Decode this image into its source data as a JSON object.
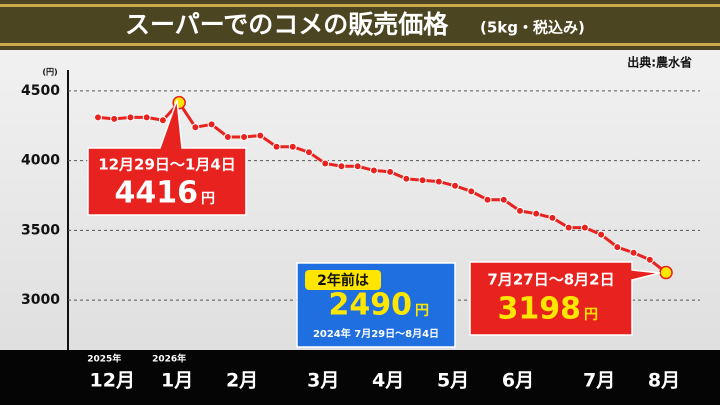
{
  "chart_data": {
    "type": "line",
    "title": "スーパーでのコメの販売価格",
    "subtitle": "(5kg・税込み)",
    "source": "出典:農水省",
    "y_unit": "(円)",
    "year_labels": [
      "2025年",
      "2026年"
    ],
    "categories": [
      null,
      "12月",
      null,
      null,
      null,
      "1月",
      null,
      null,
      null,
      "2月",
      null,
      null,
      null,
      null,
      "3月",
      null,
      null,
      null,
      "4月",
      null,
      null,
      null,
      "5月",
      null,
      null,
      null,
      "6月",
      null,
      null,
      null,
      null,
      "7月",
      null,
      null,
      null,
      "8月"
    ],
    "series": [
      {
        "name": "販売価格",
        "color": "#e8231f",
        "values": [
          4310,
          4300,
          4310,
          4310,
          4290,
          4416,
          4240,
          4260,
          4170,
          4170,
          4180,
          4100,
          4100,
          4060,
          3980,
          3960,
          3960,
          3930,
          3920,
          3870,
          3860,
          3850,
          3820,
          3780,
          3720,
          3720,
          3640,
          3620,
          3590,
          3520,
          3520,
          3470,
          3380,
          3340,
          3290,
          3198
        ]
      }
    ],
    "ylim": [
      2650,
      4650
    ],
    "yticks": [
      3000,
      3500,
      4000,
      4500
    ],
    "grid": true,
    "highlight_color": "#ffe600",
    "annotations": [
      {
        "date": "12月29日～1月4日",
        "unit": "円"
      },
      {
        "heading": "2年前は",
        "value": 2490,
        "unit": "円",
        "date": "2024年 7月29日～8月4日"
      },
      {
        "date": "7月27日～8月2日",
        "unit": "円"
      }
    ]
  }
}
